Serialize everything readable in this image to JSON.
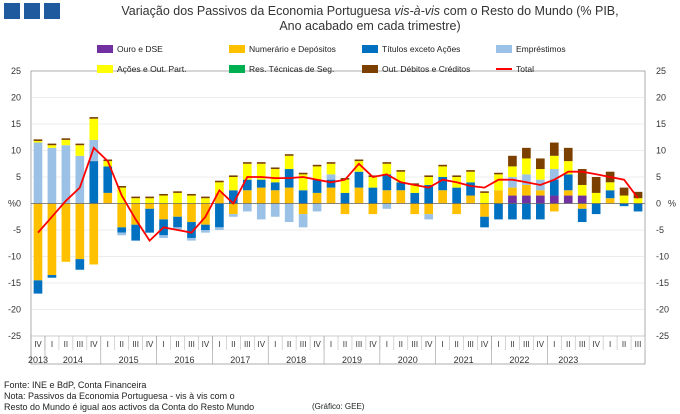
{
  "page": {
    "title_line1_a": "Variação dos Passivos da Economia Portuguesa ",
    "title_line1_italic": "vis-à-vis",
    "title_line1_b": " com o Resto do Mundo (% PIB,",
    "title_line2": "Ano acabado em cada trimestre)",
    "source": "Fonte: INE e BdP, Conta Financeira",
    "note_line1": "Nota: Passivos da Economia Portuguesa - vis à vis com o",
    "note_line2": "Resto do Mundo é igual aos activos da Conta do Resto Mundo",
    "credit": "(Gráfico: GEE)"
  },
  "chart_data": {
    "type": "bar",
    "stacked": true,
    "ylabel_left": "%",
    "ylabel_right": "%",
    "ylim": [
      -25,
      25
    ],
    "yticks": [
      -25,
      -20,
      -15,
      -10,
      -5,
      0,
      5,
      10,
      15,
      20,
      25
    ],
    "grid": true,
    "legend_position": "top",
    "quarters": [
      "IV",
      "I",
      "II",
      "III",
      "IV",
      "I",
      "II",
      "III",
      "IV",
      "I",
      "II",
      "III",
      "IV",
      "I",
      "II",
      "III",
      "IV",
      "I",
      "II",
      "III",
      "IV",
      "I",
      "II",
      "III",
      "IV",
      "I",
      "II",
      "III",
      "IV",
      "I",
      "II",
      "III",
      "IV",
      "I",
      "II",
      "III",
      "IV",
      "I",
      "II",
      "III",
      "IV",
      "I",
      "II",
      "III"
    ],
    "years": [
      {
        "label": "2013",
        "start": 0,
        "count": 1
      },
      {
        "label": "2014",
        "start": 1,
        "count": 4
      },
      {
        "label": "2015",
        "start": 5,
        "count": 4
      },
      {
        "label": "2016",
        "start": 9,
        "count": 4
      },
      {
        "label": "2017",
        "start": 13,
        "count": 4
      },
      {
        "label": "2018",
        "start": 17,
        "count": 4
      },
      {
        "label": "2019",
        "start": 21,
        "count": 4
      },
      {
        "label": "2020",
        "start": 25,
        "count": 4
      },
      {
        "label": "2021",
        "start": 29,
        "count": 4
      },
      {
        "label": "2022",
        "start": 33,
        "count": 4
      },
      {
        "label": "2023",
        "start": 37,
        "count": 3
      }
    ],
    "series": [
      {
        "name": "Ouro e DSE",
        "color": "#7030a0",
        "values": [
          0,
          0,
          0,
          0,
          0,
          0,
          0,
          0,
          0,
          0,
          0,
          0,
          0,
          0,
          0,
          0,
          0,
          0,
          0,
          0,
          0,
          0,
          0,
          0,
          0,
          0,
          0,
          0,
          0,
          0,
          0,
          0,
          0,
          0,
          1.5,
          1.5,
          1.5,
          1.5,
          1.5,
          1.5,
          0,
          0,
          0,
          0
        ]
      },
      {
        "name": "Numerário e Depósitos",
        "color": "#ffc000",
        "values": [
          -14.5,
          -13.5,
          -11,
          -10.5,
          -11.5,
          2,
          -4.5,
          -4,
          -1,
          -3,
          -2.5,
          -3.5,
          -4,
          2,
          -2,
          2.5,
          3,
          2.5,
          3,
          -2,
          2,
          3,
          -2,
          3,
          -2,
          2.5,
          2.5,
          -2,
          -2,
          2.5,
          -2,
          1.5,
          -2.5,
          2.5,
          1.5,
          2,
          1,
          -1.5,
          1,
          -1,
          0,
          1,
          0,
          0
        ]
      },
      {
        "name": "Títulos exceto Ações",
        "color": "#0070c0",
        "values": [
          -2.5,
          -0.5,
          0,
          -2,
          8,
          5,
          -1,
          -3,
          -4.5,
          -3,
          -2,
          -3,
          -1,
          -4.5,
          2.5,
          2,
          1.5,
          1.5,
          3.5,
          2.5,
          2.5,
          1.5,
          2,
          3,
          3,
          3,
          1.5,
          2,
          3.5,
          2.5,
          3,
          2.5,
          -2,
          -3,
          -3,
          -3,
          -3,
          3,
          3,
          -2.5,
          -2,
          1.5,
          -0.5,
          -1.5
        ]
      },
      {
        "name": "Empréstimos",
        "color": "#9bc2e6",
        "values": [
          11.5,
          10.5,
          11,
          9,
          4,
          0,
          -0.5,
          0,
          0,
          -0.5,
          -0.5,
          -0.5,
          -0.5,
          -0.5,
          -0.5,
          -1.5,
          -3,
          -2.5,
          -3.5,
          -2.5,
          -1.5,
          1,
          0,
          0,
          0,
          -1,
          0,
          0,
          -1,
          0,
          0,
          0,
          0,
          0,
          2,
          2,
          2,
          2,
          0,
          0,
          0,
          0,
          0,
          0
        ]
      },
      {
        "name": "Ações e Out. Part.",
        "color": "#ffff00",
        "values": [
          0.3,
          0.5,
          1,
          2,
          4,
          1,
          3,
          1,
          1,
          1.5,
          2,
          1.5,
          1,
          2,
          2.5,
          3,
          3,
          2.5,
          2.5,
          3,
          2.5,
          2,
          2.5,
          2,
          2,
          2,
          2,
          1.5,
          1.5,
          2,
          2,
          2,
          2,
          3,
          2,
          3,
          2,
          2.5,
          2.5,
          2,
          2,
          1.5,
          1.5,
          1
        ]
      },
      {
        "name": "Res. Técnicas de Seg.",
        "color": "#00b050",
        "values": [
          0,
          0,
          0,
          0,
          0,
          0,
          0,
          0,
          0,
          0,
          0,
          0,
          0,
          0,
          0,
          0,
          0,
          0,
          0,
          0,
          0,
          0,
          0,
          0,
          0,
          0,
          0,
          0,
          0,
          0,
          0,
          0,
          0,
          0,
          0,
          0,
          0,
          0,
          0,
          0,
          0,
          0,
          0,
          0
        ]
      },
      {
        "name": "Out. Débitos e Créditos",
        "color": "#7b3f00",
        "values": [
          0.3,
          0.3,
          0.3,
          0.3,
          0.3,
          0.3,
          0.3,
          0.3,
          0.3,
          0.3,
          0.3,
          0.3,
          0.3,
          0.3,
          0.3,
          0.3,
          0.3,
          0.3,
          0.3,
          0.3,
          0.3,
          0.3,
          0.3,
          0.3,
          0.3,
          0.3,
          0.3,
          0.3,
          0.3,
          0.3,
          0.3,
          0.3,
          0.3,
          0.3,
          2,
          2,
          2,
          2.5,
          2.5,
          3,
          3,
          2,
          1.5,
          1.2
        ]
      }
    ],
    "total": {
      "name": "Total",
      "color": "#ff0000",
      "values": [
        -5.5,
        -2.5,
        0.5,
        3,
        10.5,
        8,
        1.5,
        -3,
        -7,
        -4.5,
        -5,
        -5.5,
        -2.5,
        2.5,
        0,
        5,
        5,
        4.8,
        4.8,
        5,
        4.5,
        4,
        4.5,
        7.5,
        5,
        5.5,
        4,
        3.5,
        3,
        4.5,
        4,
        3.3,
        3,
        4.5,
        4.5,
        4,
        3.5,
        4.5,
        6,
        6,
        5.5,
        5,
        4.5,
        1
      ]
    }
  }
}
